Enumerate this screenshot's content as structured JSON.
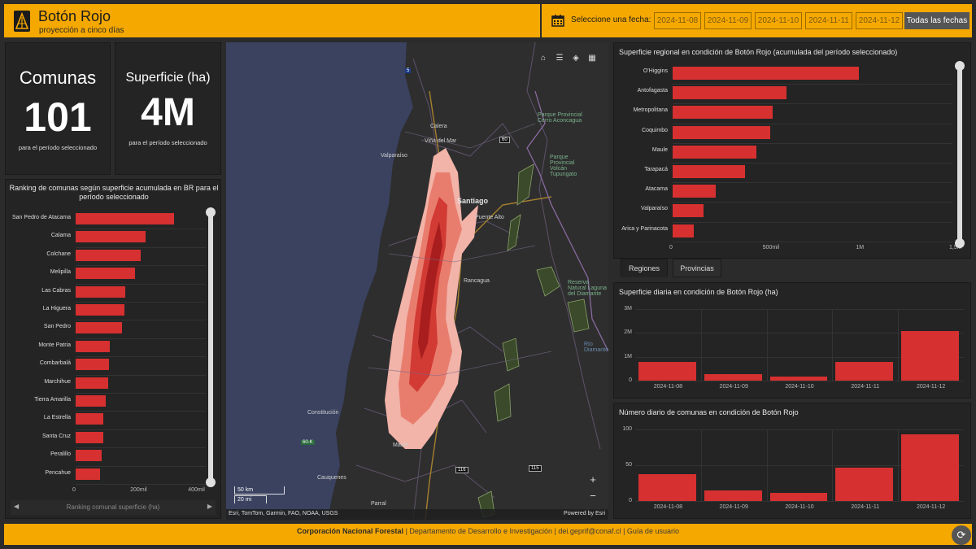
{
  "header": {
    "title": "Botón Rojo",
    "subtitle": "proyección a cinco días",
    "date_label": "Seleccione una fecha:",
    "dates": [
      "2024-11-08",
      "2024-11-09",
      "2024-11-10",
      "2024-11-11",
      "2024-11-12"
    ],
    "all_dates": "Todas las fechas",
    "accent_color": "#f5a800"
  },
  "kpis": {
    "comunas": {
      "title": "Comunas",
      "value": "101",
      "sub": "para el período seleccionado"
    },
    "superficie": {
      "title": "Superficie (ha)",
      "value": "4M",
      "sub": "para el período seleccionado"
    }
  },
  "ranking": {
    "title": "Ranking de comunas según superficie acumulada en BR para el período seleccionado",
    "footer_label": "Ranking comunal superficie (ha)",
    "x_ticks": [
      "0",
      "200mil",
      "400mil"
    ]
  },
  "map": {
    "attribution": "Esri, TomTom, Garmin, FAO, NOAA, USGS",
    "powered": "Powered by Esri",
    "scale_km": "50 km",
    "scale_mi": "20 mi",
    "places": [
      {
        "name": "Calera"
      },
      {
        "name": "Viña del Mar"
      },
      {
        "name": "Valparaíso"
      },
      {
        "name": "Santiago"
      },
      {
        "name": "Puente Alto"
      },
      {
        "name": "Rancagua"
      },
      {
        "name": "Constitución"
      },
      {
        "name": "Maule"
      },
      {
        "name": "Cauquenes"
      },
      {
        "name": "Parral"
      },
      {
        "name": "Parque Provincial Cerro Aconcagua"
      },
      {
        "name": "Parque Provincial Volcán Tupungato"
      },
      {
        "name": "Reserva Natural Laguna del Diamante"
      },
      {
        "name": "Río Diamante"
      }
    ],
    "road_shields": [
      "60",
      "116",
      "115",
      "5",
      "60-K"
    ]
  },
  "regional": {
    "title": "Superficie regional en condición de Botón Rojo (acumulada del período seleccionado)",
    "x_ticks": [
      "0",
      "500mil",
      "1M",
      "1,5M"
    ]
  },
  "tabs": [
    "Regiones",
    "Provincias"
  ],
  "daily_area": {
    "title": "Superficie diaria en condición de Botón Rojo (ha)",
    "y_ticks": [
      "0",
      "1M",
      "2M",
      "3M"
    ]
  },
  "daily_count": {
    "title": "Número diario de comunas en condición de Botón Rojo",
    "y_ticks": [
      "0",
      "50",
      "100"
    ]
  },
  "footer": {
    "org": "Corporación Nacional Forestal",
    "dept": "Departamento de Desarrollo e Investigación",
    "email": "dei.geprif@conaf.cl",
    "guide": "Guía de usuario"
  },
  "chart_data": [
    {
      "type": "bar",
      "orientation": "horizontal",
      "title": "Ranking de comunas según superficie acumulada en BR para el período seleccionado",
      "categories": [
        "San Pedro de Atacama",
        "Calama",
        "Colchane",
        "Melipilla",
        "Las Cabras",
        "La Higuera",
        "San Pedro",
        "Monte Patria",
        "Combarbalá",
        "Marchihue",
        "Tierra Amarilla",
        "La Estrella",
        "Santa Cruz",
        "Peralillo",
        "Pencahue"
      ],
      "values": [
        340000,
        243000,
        226000,
        205000,
        172000,
        168000,
        160000,
        118000,
        116000,
        113000,
        105000,
        97000,
        95000,
        91000,
        85000
      ],
      "xlim": [
        0,
        450000
      ]
    },
    {
      "type": "bar",
      "orientation": "horizontal",
      "title": "Superficie regional en condición de Botón Rojo (acumulada del período seleccionado)",
      "categories": [
        "O'Higgins",
        "Antofagasta",
        "Metropolitana",
        "Coquimbo",
        "Maule",
        "Tarapacá",
        "Atacama",
        "Valparaíso",
        "Arica y Parinacota"
      ],
      "values": [
        1000000,
        610000,
        535000,
        525000,
        450000,
        390000,
        230000,
        165000,
        115000
      ],
      "xlim": [
        0,
        1500000
      ]
    },
    {
      "type": "bar",
      "title": "Superficie diaria en condición de Botón Rojo (ha)",
      "categories": [
        "2024-11-08",
        "2024-11-09",
        "2024-11-10",
        "2024-11-11",
        "2024-11-12"
      ],
      "values": [
        780000,
        260000,
        160000,
        770000,
        2070000
      ],
      "ylim": [
        0,
        3000000
      ]
    },
    {
      "type": "bar",
      "title": "Número diario de comunas en condición de Botón Rojo",
      "categories": [
        "2024-11-08",
        "2024-11-09",
        "2024-11-10",
        "2024-11-11",
        "2024-11-12"
      ],
      "values": [
        38,
        15,
        11,
        47,
        93
      ],
      "ylim": [
        0,
        100
      ]
    }
  ]
}
